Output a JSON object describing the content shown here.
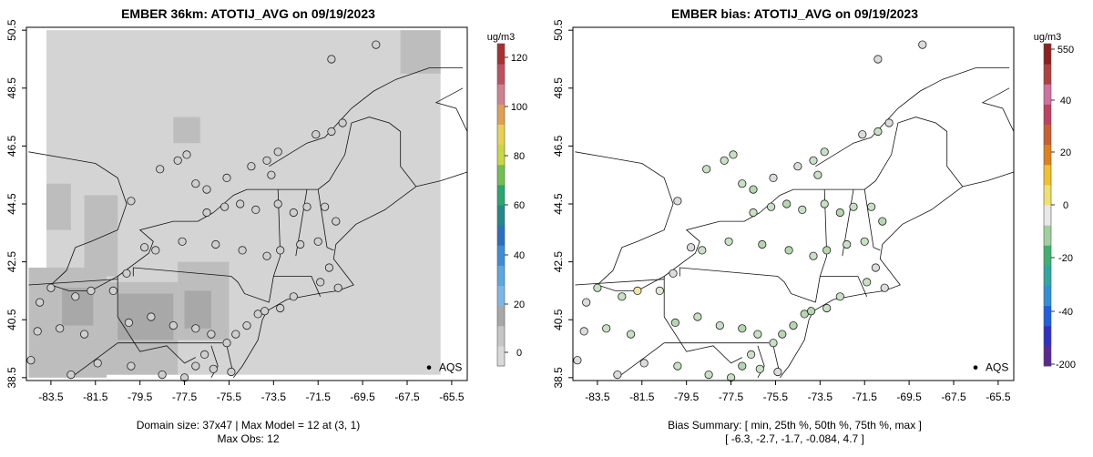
{
  "panels": [
    {
      "title": "EMBER 36km: ATOTIJ_AVG on 09/19/2023",
      "footer1": "Domain size: 37x47 | Max Model = 12 at (3, 1)",
      "footer2": "Max Obs: 12",
      "legend_label": "AQS",
      "colorbar": {
        "unit": "ug/m3",
        "ticks": [
          "120",
          "100",
          "80",
          "60",
          "40",
          "20",
          "0"
        ],
        "range": [
          -10,
          128
        ],
        "colors": [
          "#d9d9d9",
          "#c6c6c6",
          "#a8a8a8",
          "#7ab8e8",
          "#5aa8e0",
          "#3a8ed8",
          "#2a70c0",
          "#1f8a8a",
          "#26a870",
          "#72c050",
          "#c8d840",
          "#e8d050",
          "#e0a050",
          "#d08090",
          "#c05060",
          "#a83030"
        ]
      }
    },
    {
      "title": "EMBER bias: ATOTIJ_AVG on 09/19/2023",
      "footer1": "Bias Summary: [ min, 25th %, 50th %, 75th %, max ]",
      "footer2": "[ -6.3,   -2.7,   -1.7,   -0.084,   4.7 ]",
      "legend_label": "AQS",
      "colorbar": {
        "unit": "ug/m3",
        "ticks": [
          "550",
          "40",
          "20",
          "0",
          "-20",
          "-40",
          "-200"
        ],
        "colors": [
          "#5a2a90",
          "#3030c8",
          "#2060e0",
          "#3090d8",
          "#30a8a0",
          "#40b070",
          "#a0d0a0",
          "#e8e8e8",
          "#f0e070",
          "#f0c030",
          "#e08020",
          "#c86030",
          "#c04060",
          "#d070a0",
          "#b04040",
          "#902020"
        ]
      }
    }
  ],
  "chart_data": [
    {
      "type": "scatter",
      "title": "EMBER 36km: ATOTIJ_AVG on 09/19/2023",
      "xticks": [
        "-83.5",
        "-81.5",
        "-79.5",
        "-77.5",
        "-75.5",
        "-73.5",
        "-71.5",
        "-69.5",
        "-67.5",
        "-65.5"
      ],
      "yticks": [
        "38.5",
        "40.5",
        "42.5",
        "44.5",
        "46.5",
        "48.5",
        "50.5"
      ],
      "xlim": [
        -84.6,
        -64.8
      ],
      "ylim": [
        38.4,
        50.6
      ],
      "points": [
        {
          "lon": -68.9,
          "lat": 50.0
        },
        {
          "lon": -70.9,
          "lat": 49.5
        },
        {
          "lon": -70.4,
          "lat": 47.3
        },
        {
          "lon": -70.9,
          "lat": 47.0
        },
        {
          "lon": -71.6,
          "lat": 46.9
        },
        {
          "lon": -73.3,
          "lat": 46.3
        },
        {
          "lon": -77.4,
          "lat": 46.2
        },
        {
          "lon": -77.8,
          "lat": 46.0
        },
        {
          "lon": -78.6,
          "lat": 45.7
        },
        {
          "lon": -74.5,
          "lat": 45.8
        },
        {
          "lon": -73.8,
          "lat": 46.0
        },
        {
          "lon": -73.6,
          "lat": 45.5
        },
        {
          "lon": -75.6,
          "lat": 45.4
        },
        {
          "lon": -76.5,
          "lat": 45.0
        },
        {
          "lon": -77.0,
          "lat": 45.2
        },
        {
          "lon": -79.9,
          "lat": 44.6
        },
        {
          "lon": -76.5,
          "lat": 44.2
        },
        {
          "lon": -75.7,
          "lat": 44.4
        },
        {
          "lon": -75.0,
          "lat": 44.5
        },
        {
          "lon": -74.3,
          "lat": 44.3
        },
        {
          "lon": -73.3,
          "lat": 44.5
        },
        {
          "lon": -72.6,
          "lat": 44.2
        },
        {
          "lon": -72.0,
          "lat": 44.4
        },
        {
          "lon": -71.2,
          "lat": 44.4
        },
        {
          "lon": -70.7,
          "lat": 43.9
        },
        {
          "lon": -71.5,
          "lat": 43.2
        },
        {
          "lon": -72.3,
          "lat": 43.1
        },
        {
          "lon": -73.2,
          "lat": 42.9
        },
        {
          "lon": -73.8,
          "lat": 42.7
        },
        {
          "lon": -74.9,
          "lat": 42.9
        },
        {
          "lon": -76.1,
          "lat": 43.1
        },
        {
          "lon": -77.6,
          "lat": 43.2
        },
        {
          "lon": -78.8,
          "lat": 42.9
        },
        {
          "lon": -79.3,
          "lat": 43.0
        },
        {
          "lon": -80.1,
          "lat": 42.1
        },
        {
          "lon": -80.7,
          "lat": 41.5
        },
        {
          "lon": -81.7,
          "lat": 41.5
        },
        {
          "lon": -82.4,
          "lat": 41.3
        },
        {
          "lon": -83.5,
          "lat": 41.6
        },
        {
          "lon": -84.0,
          "lat": 41.1
        },
        {
          "lon": -83.1,
          "lat": 40.2
        },
        {
          "lon": -82.0,
          "lat": 40.0
        },
        {
          "lon": -80.0,
          "lat": 40.4
        },
        {
          "lon": -79.0,
          "lat": 40.6
        },
        {
          "lon": -78.0,
          "lat": 40.3
        },
        {
          "lon": -77.0,
          "lat": 40.2
        },
        {
          "lon": -76.3,
          "lat": 40.0
        },
        {
          "lon": -75.2,
          "lat": 40.0
        },
        {
          "lon": -74.7,
          "lat": 40.3
        },
        {
          "lon": -74.2,
          "lat": 40.7
        },
        {
          "lon": -73.9,
          "lat": 40.8
        },
        {
          "lon": -73.2,
          "lat": 40.9
        },
        {
          "lon": -72.6,
          "lat": 41.3
        },
        {
          "lon": -71.4,
          "lat": 41.8
        },
        {
          "lon": -71.0,
          "lat": 42.3
        },
        {
          "lon": -70.6,
          "lat": 41.6
        },
        {
          "lon": -75.6,
          "lat": 39.7
        },
        {
          "lon": -76.6,
          "lat": 39.3
        },
        {
          "lon": -77.0,
          "lat": 38.9
        },
        {
          "lon": -77.5,
          "lat": 38.5
        },
        {
          "lon": -76.2,
          "lat": 38.8
        },
        {
          "lon": -75.4,
          "lat": 38.7
        },
        {
          "lon": -79.9,
          "lat": 38.9
        },
        {
          "lon": -78.5,
          "lat": 38.6
        },
        {
          "lon": -81.4,
          "lat": 39.0
        },
        {
          "lon": -82.6,
          "lat": 38.6
        },
        {
          "lon": -84.4,
          "lat": 39.1
        },
        {
          "lon": -84.1,
          "lat": 40.1
        }
      ]
    },
    {
      "type": "scatter",
      "title": "EMBER bias: ATOTIJ_AVG on 09/19/2023",
      "xticks": [
        "-83.5",
        "-81.5",
        "-79.5",
        "-77.5",
        "-75.5",
        "-73.5",
        "-71.5",
        "-69.5",
        "-67.5",
        "-65.5"
      ],
      "yticks": [
        "38.5",
        "40.5",
        "42.5",
        "44.5",
        "46.5",
        "48.5",
        "50.5"
      ],
      "xlim": [
        -84.6,
        -64.8
      ],
      "ylim": [
        38.4,
        50.6
      ],
      "bias_summary": {
        "min": -6.3,
        "p25": -2.7,
        "p50": -1.7,
        "p75": -0.084,
        "max": 4.7
      },
      "points": [
        {
          "lon": -68.9,
          "lat": 50.0,
          "bias": -0.5
        },
        {
          "lon": -70.9,
          "lat": 49.5,
          "bias": -1.0
        },
        {
          "lon": -70.4,
          "lat": 47.3,
          "bias": -0.3
        },
        {
          "lon": -70.9,
          "lat": 47.0,
          "bias": -1.6
        },
        {
          "lon": -71.6,
          "lat": 46.9,
          "bias": -0.9
        },
        {
          "lon": -73.3,
          "lat": 46.3,
          "bias": -2.1
        },
        {
          "lon": -77.4,
          "lat": 46.2,
          "bias": -1.5
        },
        {
          "lon": -77.8,
          "lat": 46.0,
          "bias": -2.6
        },
        {
          "lon": -78.6,
          "lat": 45.7,
          "bias": -1.2
        },
        {
          "lon": -74.5,
          "lat": 45.8,
          "bias": -0.7
        },
        {
          "lon": -73.8,
          "lat": 46.0,
          "bias": -1.9
        },
        {
          "lon": -73.6,
          "lat": 45.5,
          "bias": -2.4
        },
        {
          "lon": -75.6,
          "lat": 45.4,
          "bias": -1.1
        },
        {
          "lon": -76.5,
          "lat": 45.0,
          "bias": -3.2
        },
        {
          "lon": -77.0,
          "lat": 45.2,
          "bias": -2.0
        },
        {
          "lon": -79.9,
          "lat": 44.6,
          "bias": -0.4
        },
        {
          "lon": -76.5,
          "lat": 44.2,
          "bias": -2.8
        },
        {
          "lon": -75.7,
          "lat": 44.4,
          "bias": -1.6
        },
        {
          "lon": -75.0,
          "lat": 44.5,
          "bias": -3.5
        },
        {
          "lon": -74.3,
          "lat": 44.3,
          "bias": -2.2
        },
        {
          "lon": -73.3,
          "lat": 44.5,
          "bias": -1.4
        },
        {
          "lon": -72.6,
          "lat": 44.2,
          "bias": -3.0
        },
        {
          "lon": -72.0,
          "lat": 44.4,
          "bias": -2.5
        },
        {
          "lon": -71.2,
          "lat": 44.4,
          "bias": -1.8
        },
        {
          "lon": -70.7,
          "lat": 43.9,
          "bias": -4.0
        },
        {
          "lon": -71.5,
          "lat": 43.2,
          "bias": -2.9
        },
        {
          "lon": -72.3,
          "lat": 43.1,
          "bias": -1.7
        },
        {
          "lon": -73.2,
          "lat": 42.9,
          "bias": -3.3
        },
        {
          "lon": -73.8,
          "lat": 42.7,
          "bias": -2.6
        },
        {
          "lon": -74.9,
          "lat": 42.9,
          "bias": -4.4
        },
        {
          "lon": -76.1,
          "lat": 43.1,
          "bias": -3.1
        },
        {
          "lon": -77.6,
          "lat": 43.2,
          "bias": -2.3
        },
        {
          "lon": -78.8,
          "lat": 42.9,
          "bias": -1.9
        },
        {
          "lon": -79.3,
          "lat": 43.0,
          "bias": -0.8
        },
        {
          "lon": -80.1,
          "lat": 42.1,
          "bias": -0.1
        },
        {
          "lon": -80.7,
          "lat": 41.5,
          "bias": 0.6
        },
        {
          "lon": -81.7,
          "lat": 41.5,
          "bias": 4.7
        },
        {
          "lon": -82.4,
          "lat": 41.3,
          "bias": -2.7
        },
        {
          "lon": -83.5,
          "lat": 41.6,
          "bias": -1.3
        },
        {
          "lon": -84.0,
          "lat": 41.1,
          "bias": -0.6
        },
        {
          "lon": -83.1,
          "lat": 40.2,
          "bias": -1.7
        },
        {
          "lon": -82.0,
          "lat": 40.0,
          "bias": -2.1
        },
        {
          "lon": -80.0,
          "lat": 40.4,
          "bias": -3.4
        },
        {
          "lon": -79.0,
          "lat": 40.6,
          "bias": -2.8
        },
        {
          "lon": -78.0,
          "lat": 40.3,
          "bias": -1.5
        },
        {
          "lon": -77.0,
          "lat": 40.2,
          "bias": -3.8
        },
        {
          "lon": -76.3,
          "lat": 40.0,
          "bias": -2.4
        },
        {
          "lon": -75.2,
          "lat": 40.0,
          "bias": -5.2
        },
        {
          "lon": -74.7,
          "lat": 40.3,
          "bias": -4.1
        },
        {
          "lon": -74.2,
          "lat": 40.7,
          "bias": -6.3
        },
        {
          "lon": -73.9,
          "lat": 40.8,
          "bias": -3.6
        },
        {
          "lon": -73.2,
          "lat": 40.9,
          "bias": -2.2
        },
        {
          "lon": -72.6,
          "lat": 41.3,
          "bias": -1.6
        },
        {
          "lon": -71.4,
          "lat": 41.8,
          "bias": -2.9
        },
        {
          "lon": -71.0,
          "lat": 42.3,
          "bias": -1.0
        },
        {
          "lon": -70.6,
          "lat": 41.6,
          "bias": -0.3
        },
        {
          "lon": -75.6,
          "lat": 39.7,
          "bias": -2.5
        },
        {
          "lon": -76.6,
          "lat": 39.3,
          "bias": -1.8
        },
        {
          "lon": -77.0,
          "lat": 38.9,
          "bias": -3.0
        },
        {
          "lon": -77.5,
          "lat": 38.5,
          "bias": -2.0
        },
        {
          "lon": -76.2,
          "lat": 38.8,
          "bias": -1.2
        },
        {
          "lon": -75.4,
          "lat": 38.7,
          "bias": -0.9
        },
        {
          "lon": -79.9,
          "lat": 38.9,
          "bias": -1.4
        },
        {
          "lon": -78.5,
          "lat": 38.6,
          "bias": -2.2
        },
        {
          "lon": -81.4,
          "lat": 39.0,
          "bias": -0.7
        },
        {
          "lon": -82.6,
          "lat": 38.6,
          "bias": -1.1
        },
        {
          "lon": -84.4,
          "lat": 39.1,
          "bias": -0.2
        },
        {
          "lon": -84.1,
          "lat": 40.1,
          "bias": -0.5
        }
      ]
    }
  ]
}
